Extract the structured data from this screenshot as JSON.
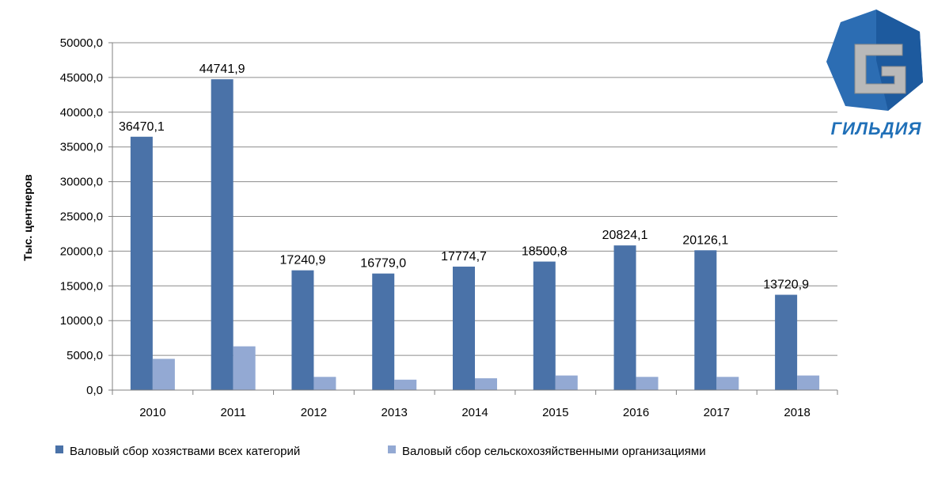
{
  "chart_data": {
    "type": "bar",
    "categories": [
      "2010",
      "2011",
      "2012",
      "2013",
      "2014",
      "2015",
      "2016",
      "2017",
      "2018"
    ],
    "series": [
      {
        "name": "Валовый сбор хозяствами всех категорий",
        "values": [
          36470.1,
          44741.9,
          17240.9,
          16779.0,
          17774.7,
          18500.8,
          20824.1,
          20126.1,
          13720.9
        ],
        "labels": [
          "36470,1",
          "44741,9",
          "17240,9",
          "16779,0",
          "17774,7",
          "18500,8",
          "20824,1",
          "20126,1",
          "13720,9"
        ],
        "color": "#4a72a8"
      },
      {
        "name": "Валовый сбор сельскохозяйственными организациями",
        "values": [
          4500,
          6300,
          1900,
          1500,
          1700,
          2100,
          1900,
          1900,
          2100
        ],
        "color": "#93a9d3"
      }
    ],
    "ylabel": "Тыс. центнеров",
    "ylim": [
      0,
      50000
    ],
    "yticks": [
      "0,0",
      "5000,0",
      "10000,0",
      "15000,0",
      "20000,0",
      "25000,0",
      "30000,0",
      "35000,0",
      "40000,0",
      "45000,0",
      "50000,0"
    ],
    "grid": true,
    "legend_position": "bottom"
  },
  "logo": {
    "text": "ГИЛЬДИЯ",
    "letter": "G"
  }
}
